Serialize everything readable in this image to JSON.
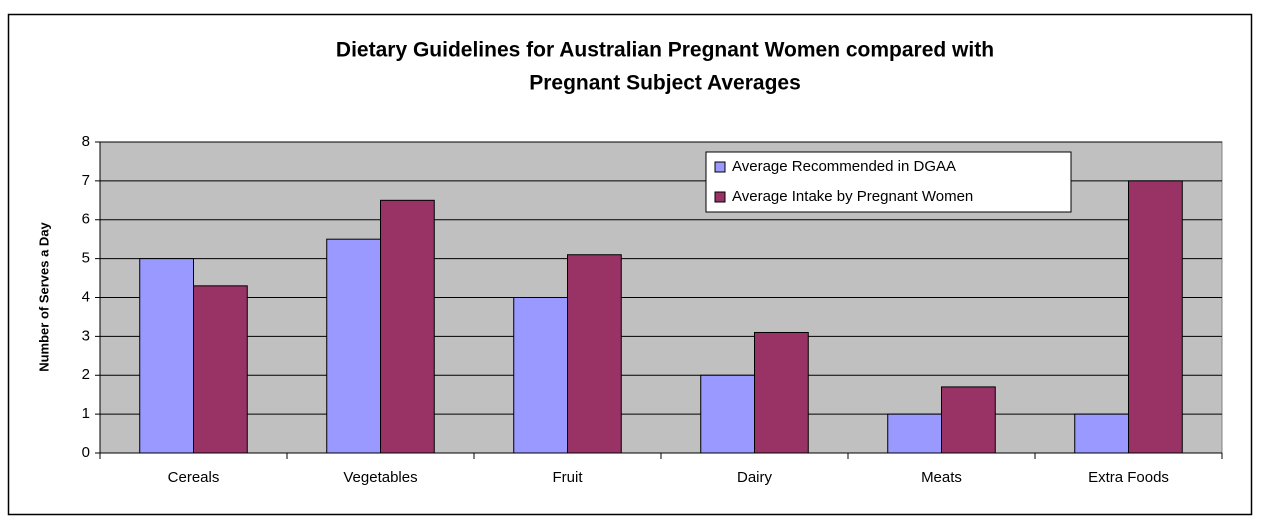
{
  "chart_data": {
    "type": "bar",
    "title": [
      "Dietary Guidelines for Australian Pregnant Women compared with",
      "Pregnant Subject Averages"
    ],
    "y_label": "Number of Serves a Day",
    "categories": [
      "Cereals",
      "Vegetables",
      "Fruit",
      "Dairy",
      "Meats",
      "Extra Foods"
    ],
    "series": [
      {
        "name": "Average Recommended in DGAA",
        "color": "#9999ff",
        "values": [
          5,
          5.5,
          4,
          2,
          1,
          1
        ]
      },
      {
        "name": "Average Intake by Pregnant Women",
        "color": "#993366",
        "values": [
          4.3,
          6.5,
          5.1,
          3.1,
          1.7,
          7
        ]
      }
    ],
    "ylim": [
      0,
      8
    ],
    "yticks": [
      0,
      1,
      2,
      3,
      4,
      5,
      6,
      7,
      8
    ],
    "grid": true,
    "legend": "top-right",
    "plot_background": "#c0c0c0"
  }
}
